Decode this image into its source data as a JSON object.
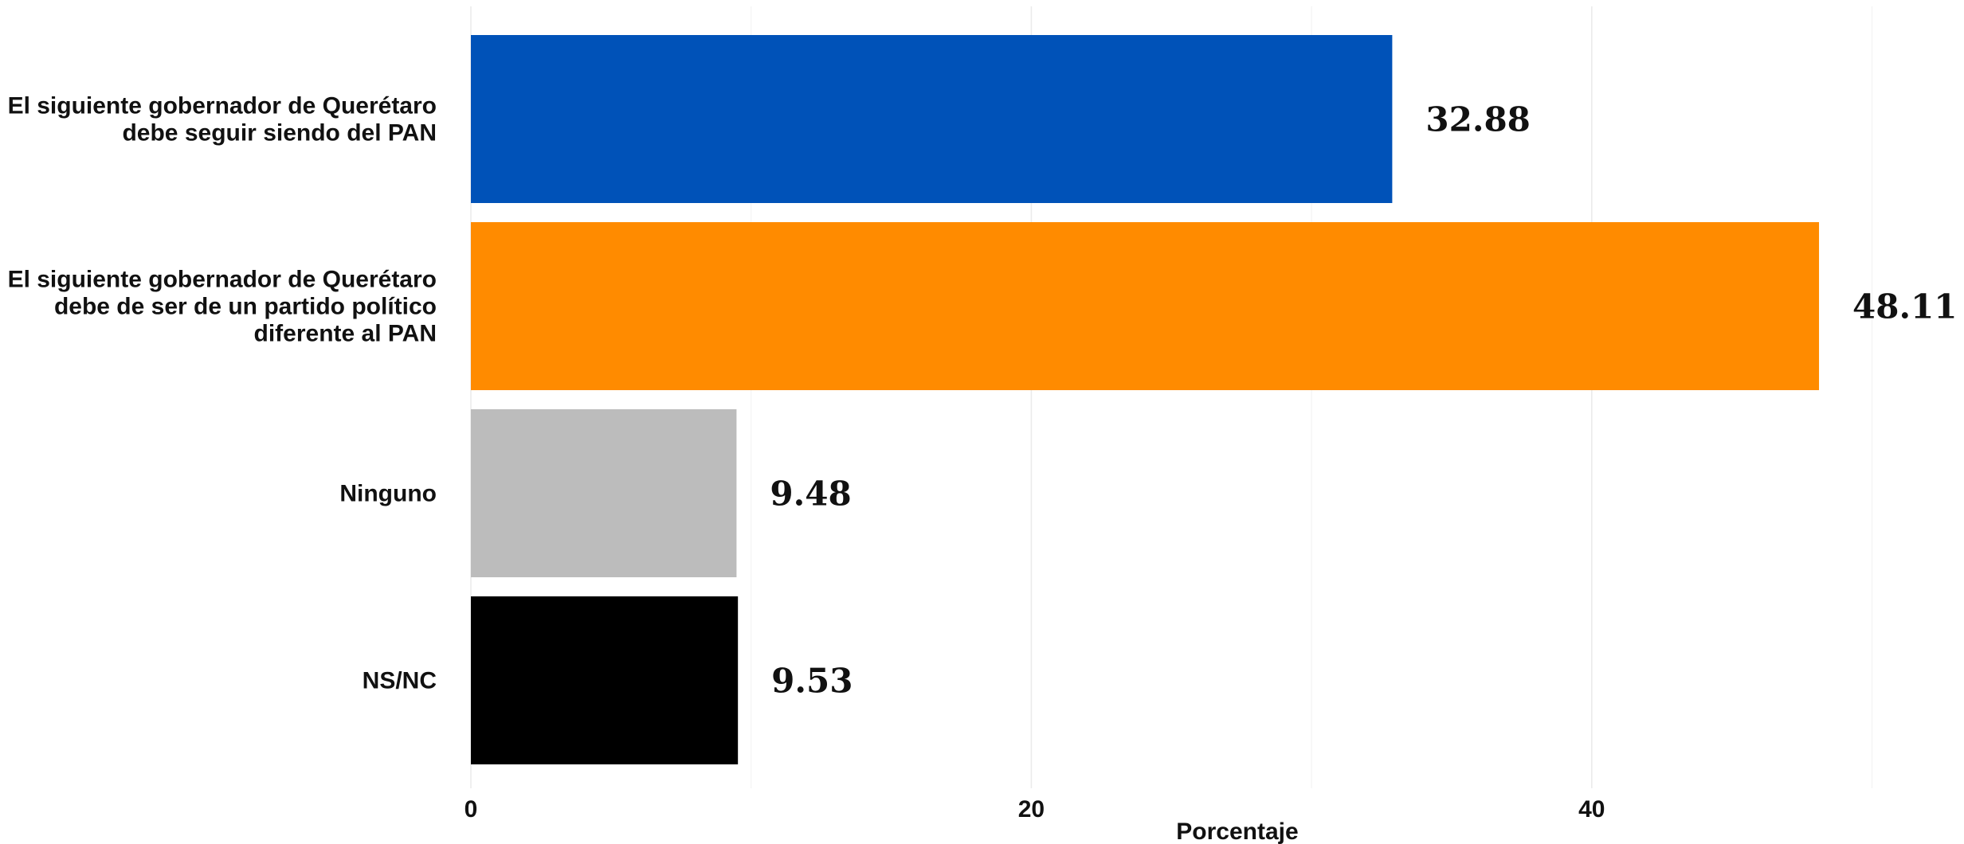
{
  "chart_data": {
    "type": "bar",
    "orientation": "horizontal",
    "categories": [
      "El siguiente gobernador de Querétaro debe seguir siendo del PAN",
      "El siguiente gobernador de Querétaro debe de ser de un partido político diferente al PAN",
      "Ninguno",
      "NS/NC"
    ],
    "category_label_lines": [
      [
        "El siguiente gobernador de Querétaro",
        "debe seguir siendo del PAN"
      ],
      [
        "El siguiente gobernador de Querétaro",
        "debe de ser de un partido político",
        "diferente al PAN"
      ],
      [
        "Ninguno"
      ],
      [
        "NS/NC"
      ]
    ],
    "values": [
      32.88,
      48.11,
      9.48,
      9.53
    ],
    "value_labels": [
      "32.88",
      "48.11",
      "9.48",
      "9.53"
    ],
    "colors": [
      "#0052b8",
      "#ff8b00",
      "#bcbcbc",
      "#000000"
    ],
    "title": "",
    "xlabel": "Porcentaje",
    "ylabel": "",
    "xlim": [
      0,
      50
    ],
    "x_ticks": [
      0,
      20,
      40
    ],
    "x_tick_labels": [
      "0",
      "20",
      "40"
    ],
    "grid": true,
    "legend": "none"
  }
}
